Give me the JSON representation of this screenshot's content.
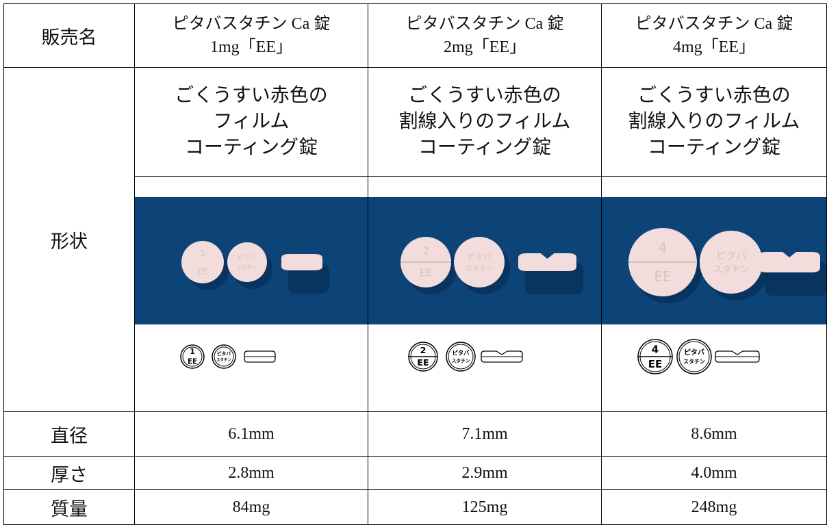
{
  "table": {
    "header": {
      "label": "販売名",
      "products": [
        {
          "name": "ピタバスタチン Ca 錠",
          "strength": "1mg「EE」"
        },
        {
          "name": "ピタバスタチン Ca 錠",
          "strength": "2mg「EE」"
        },
        {
          "name": "ピタバスタチン Ca 錠",
          "strength": "4mg「EE」"
        }
      ]
    },
    "shape": {
      "label": "形状",
      "descriptions": [
        [
          "ごくうすい赤色の",
          "フィルム",
          "コーティング錠"
        ],
        [
          "ごくうすい赤色の",
          "割線入りのフィルム",
          "コーティング錠"
        ],
        [
          "ごくうすい赤色の",
          "割線入りのフィルム",
          "コーティング錠"
        ]
      ],
      "imprints": [
        {
          "front": [
            "1",
            "EE"
          ],
          "back": [
            "ピタバ",
            "スタチン"
          ]
        },
        {
          "front": [
            "2",
            "EE"
          ],
          "back": [
            "ピタバ",
            "スタチン"
          ]
        },
        {
          "front": [
            "4",
            "EE"
          ],
          "back": [
            "ピタバ",
            "スタチン"
          ]
        }
      ]
    },
    "specs": [
      {
        "label": "直径",
        "values": [
          "6.1mm",
          "7.1mm",
          "8.6mm"
        ]
      },
      {
        "label": "厚さ",
        "values": [
          "2.8mm",
          "2.9mm",
          "4.0mm"
        ]
      },
      {
        "label": "質量",
        "values": [
          "84mg",
          "125mg",
          "248mg"
        ]
      }
    ]
  }
}
